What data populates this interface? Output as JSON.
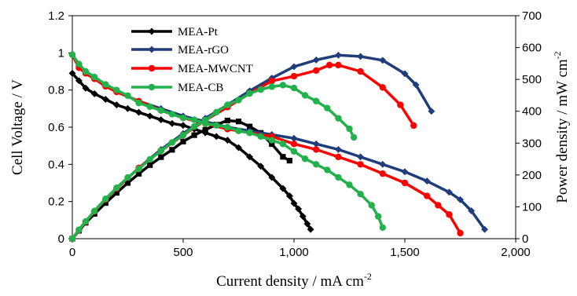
{
  "chart_data": {
    "type": "line",
    "xlabel": "Current density / mA cm",
    "xlabel_sup": "-2",
    "ylabel_left": "Cell Voltage / V",
    "ylabel_right": "Power density / mW cm",
    "ylabel_right_sup": "-2",
    "xlim": [
      0,
      2000
    ],
    "ylim_left": [
      0,
      1.2
    ],
    "ylim_right": [
      0,
      700
    ],
    "x_ticks": [
      0,
      500,
      1000,
      1500,
      2000
    ],
    "x_tick_labels": [
      "0",
      "500",
      "1,000",
      "1,500",
      "2,000"
    ],
    "y_left_ticks": [
      0,
      0.2,
      0.4,
      0.6,
      0.8,
      1,
      1.2
    ],
    "y_left_tick_labels": [
      "0",
      "0.2",
      "0.4",
      "0.6",
      "0.8",
      "1",
      "1.2"
    ],
    "y_right_ticks": [
      0,
      100,
      200,
      300,
      400,
      500,
      600,
      700
    ],
    "y_right_tick_labels": [
      "0",
      "100",
      "200",
      "300",
      "400",
      "500",
      "600",
      "700"
    ],
    "grid": false,
    "legend_position": "top-left",
    "series": [
      {
        "name": "MEA-Pt",
        "color": "#000000",
        "marker": "diamond",
        "power_marker": "square",
        "polarization": {
          "x": [
            0,
            30,
            60,
            100,
            150,
            200,
            250,
            300,
            350,
            400,
            450,
            500,
            550,
            600,
            650,
            700,
            750,
            800,
            850,
            900,
            950,
            980,
            1000,
            1020,
            1040,
            1060,
            1075
          ],
          "y": [
            0.89,
            0.85,
            0.81,
            0.78,
            0.75,
            0.72,
            0.7,
            0.68,
            0.66,
            0.64,
            0.62,
            0.61,
            0.59,
            0.57,
            0.55,
            0.53,
            0.49,
            0.44,
            0.39,
            0.33,
            0.27,
            0.23,
            0.19,
            0.16,
            0.12,
            0.08,
            0.05
          ]
        },
        "power": {
          "x": [
            0,
            30,
            60,
            100,
            150,
            200,
            250,
            300,
            350,
            400,
            450,
            500,
            550,
            600,
            650,
            700,
            750,
            800,
            850,
            900,
            950,
            980
          ],
          "y": [
            0,
            25,
            50,
            78,
            112,
            144,
            175,
            204,
            231,
            256,
            279,
            305,
            325,
            342,
            358,
            371,
            368,
            352,
            332,
            297,
            257,
            245
          ]
        }
      },
      {
        "name": "MEA-rGO",
        "color": "#1f3d7a",
        "marker": "diamond",
        "polarization": {
          "x": [
            0,
            30,
            60,
            100,
            150,
            200,
            300,
            400,
            500,
            600,
            700,
            800,
            900,
            1000,
            1100,
            1200,
            1300,
            1400,
            1500,
            1600,
            1700,
            1750,
            1800,
            1860
          ],
          "y": [
            0.99,
            0.93,
            0.9,
            0.87,
            0.83,
            0.79,
            0.74,
            0.7,
            0.66,
            0.63,
            0.6,
            0.58,
            0.56,
            0.54,
            0.51,
            0.48,
            0.44,
            0.4,
            0.36,
            0.31,
            0.25,
            0.21,
            0.15,
            0.05
          ]
        },
        "power": {
          "x": [
            0,
            30,
            60,
            100,
            150,
            200,
            300,
            400,
            500,
            600,
            700,
            800,
            900,
            1000,
            1100,
            1200,
            1300,
            1400,
            1500,
            1550,
            1620
          ],
          "y": [
            0,
            28,
            54,
            87,
            125,
            158,
            222,
            280,
            330,
            378,
            420,
            464,
            504,
            540,
            561,
            576,
            572,
            560,
            518,
            483,
            400
          ]
        }
      },
      {
        "name": "MEA-MWCNT",
        "color": "#ff0000",
        "marker": "circle",
        "polarization": {
          "x": [
            0,
            30,
            60,
            100,
            150,
            200,
            300,
            400,
            500,
            600,
            700,
            800,
            900,
            1000,
            1100,
            1200,
            1300,
            1400,
            1500,
            1600,
            1650,
            1700,
            1750
          ],
          "y": [
            0.99,
            0.92,
            0.89,
            0.86,
            0.82,
            0.79,
            0.74,
            0.69,
            0.65,
            0.62,
            0.59,
            0.57,
            0.55,
            0.51,
            0.48,
            0.44,
            0.4,
            0.35,
            0.3,
            0.23,
            0.18,
            0.13,
            0.03
          ]
        },
        "power": {
          "x": [
            0,
            30,
            60,
            100,
            150,
            200,
            300,
            400,
            500,
            600,
            700,
            800,
            900,
            1000,
            1100,
            1160,
            1200,
            1300,
            1400,
            1480,
            1540
          ],
          "y": [
            0,
            27,
            53,
            86,
            123,
            158,
            222,
            276,
            325,
            372,
            413,
            456,
            495,
            510,
            528,
            545,
            545,
            525,
            475,
            420,
            355
          ]
        }
      },
      {
        "name": "MEA-CB",
        "color": "#22b24c",
        "marker": "circle",
        "polarization": {
          "x": [
            0,
            30,
            60,
            100,
            150,
            200,
            250,
            300,
            350,
            400,
            450,
            500,
            550,
            600,
            650,
            700,
            750,
            800,
            850,
            900,
            950,
            1000,
            1050,
            1100,
            1150,
            1200,
            1250,
            1300,
            1350,
            1380,
            1400
          ],
          "y": [
            0.99,
            0.94,
            0.9,
            0.87,
            0.83,
            0.8,
            0.77,
            0.73,
            0.71,
            0.69,
            0.67,
            0.65,
            0.64,
            0.62,
            0.61,
            0.6,
            0.58,
            0.57,
            0.55,
            0.53,
            0.51,
            0.47,
            0.43,
            0.4,
            0.37,
            0.33,
            0.29,
            0.24,
            0.18,
            0.12,
            0.06
          ]
        },
        "power": {
          "x": [
            0,
            30,
            60,
            100,
            150,
            200,
            250,
            300,
            350,
            400,
            450,
            500,
            550,
            600,
            650,
            700,
            750,
            800,
            850,
            900,
            950,
            1000,
            1050,
            1100,
            1150,
            1200,
            1250,
            1270
          ],
          "y": [
            0,
            28,
            54,
            87,
            125,
            160,
            192,
            219,
            249,
            276,
            302,
            325,
            352,
            372,
            397,
            420,
            435,
            456,
            468,
            477,
            482,
            473,
            450,
            432,
            410,
            378,
            345,
            318
          ]
        }
      }
    ]
  }
}
